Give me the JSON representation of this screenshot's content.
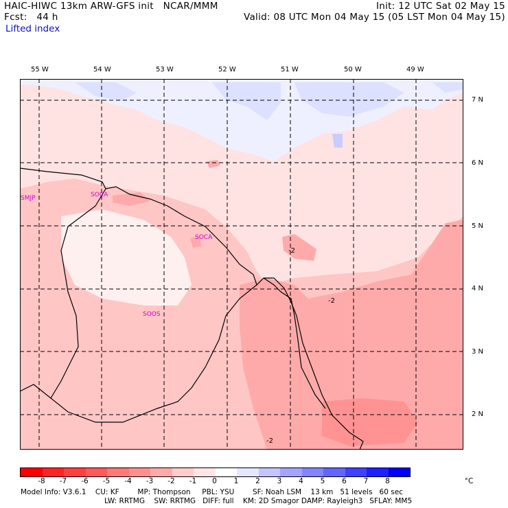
{
  "header": {
    "line1_left": "HAIC-HIWC 13km ARW-GFS init   NCAR/MMM",
    "line1_right": "Init: 12 UTC Sat 02 May 15",
    "line2_left": "Fcst:   44 h",
    "line2_right": "Valid: 08 UTC Mon 04 May 15 (05 LST Mon 04 May 15)",
    "field": "Lifted index"
  },
  "map": {
    "longitude_labels": [
      "55 W",
      "54 W",
      "53 W",
      "52 W",
      "51 W",
      "50 W",
      "49 W"
    ],
    "latitude_labels": [
      "7 N",
      "6 N",
      "5 N",
      "4 N",
      "3 N",
      "2 N"
    ],
    "stations": [
      "SMJP",
      "SOCA",
      "SOCA",
      "SOOS"
    ],
    "contour_labels": [
      "-2",
      "-2",
      "-2"
    ]
  },
  "colorbar": {
    "labels": [
      "-8",
      "-7",
      "-6",
      "-5",
      "-4",
      "-3",
      "-2",
      "-1",
      "0",
      "1",
      "2",
      "3",
      "4",
      "5",
      "6",
      "7",
      "8"
    ],
    "unit": "°C",
    "colors": [
      "#ff0000",
      "#ff2424",
      "#ff4040",
      "#ff5a5a",
      "#ff7878",
      "#ff9090",
      "#ffaaaa",
      "#ffcccc",
      "#ffe6e6",
      "#ffffff",
      "#e6e6ff",
      "#c4c4ff",
      "#a4a4ff",
      "#8484ff",
      "#6464ff",
      "#4040ff",
      "#2020ff",
      "#0000ff"
    ]
  },
  "footer": {
    "line1": "Model Info: V3.6.1    CU: KF        MP: Thompson     PBL: YSU        SF: Noah LSM    13 km   51 levels   60 sec",
    "line2": "LW: RRTMG    SW: RRTMG   DIFF: full    KM: 2D Smagor DAMP: Rayleigh3   SFLAY: MM5"
  }
}
